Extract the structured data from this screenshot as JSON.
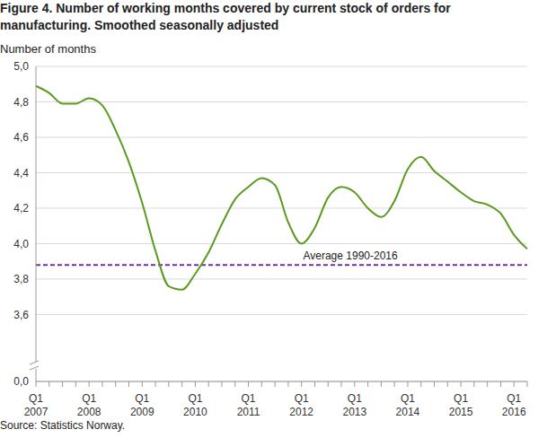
{
  "chart_data": {
    "type": "line",
    "title": "Figure 4. Number of working months covered by current stock of orders for manufacturing. Smoothed seasonally adjusted",
    "y_label": "Number of months",
    "source": "Source: Statistics Norway.",
    "categories": [
      "Q1 2007",
      null,
      null,
      null,
      "Q1 2008",
      null,
      null,
      null,
      "Q1 2009",
      null,
      null,
      null,
      "Q1 2010",
      null,
      null,
      null,
      "Q1 2011",
      null,
      null,
      null,
      "Q1 2012",
      null,
      null,
      null,
      "Q1 2013",
      null,
      null,
      null,
      "Q1 2014",
      null,
      null,
      null,
      "Q1 2015",
      null,
      null,
      null,
      "Q1 2016",
      null
    ],
    "values": [
      4.89,
      4.85,
      4.79,
      4.79,
      4.82,
      4.78,
      4.64,
      4.46,
      4.23,
      3.96,
      3.76,
      3.74,
      3.83,
      3.95,
      4.11,
      4.25,
      4.32,
      4.37,
      4.33,
      4.12,
      4.0,
      4.09,
      4.26,
      4.32,
      4.29,
      4.2,
      4.15,
      4.24,
      4.42,
      4.49,
      4.41,
      4.35,
      4.29,
      4.24,
      4.22,
      4.17,
      4.05,
      3.97
    ],
    "color": "#5a9a1e",
    "ylim": [
      0,
      5
    ],
    "yticks": [
      {
        "value": 0,
        "label": "0,0"
      },
      {
        "value": 3.6,
        "label": "3,6"
      },
      {
        "value": 3.8,
        "label": "3,8"
      },
      {
        "value": 4,
        "label": "4,0"
      },
      {
        "value": 4.2,
        "label": "4,2"
      },
      {
        "value": 4.4,
        "label": "4,4"
      },
      {
        "value": 4.6,
        "label": "4,6"
      },
      {
        "value": 4.8,
        "label": "4,8"
      },
      {
        "value": 5,
        "label": "5,0"
      }
    ],
    "grid": true,
    "average": {
      "value": 3.88,
      "label": "Average 1990-2016",
      "color": "#7030a0",
      "line_style": "dashed"
    }
  }
}
